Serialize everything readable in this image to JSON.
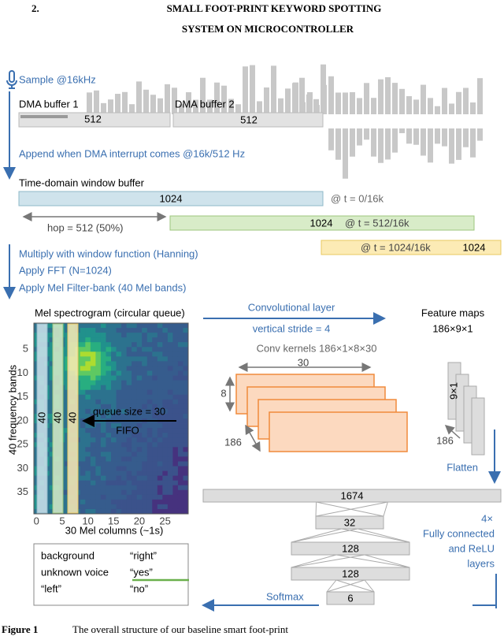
{
  "heading": {
    "number": "2.",
    "line1": "SMALL FOOT-PRINT KEYWORD SPOTTING",
    "line2": "SYSTEM ON MICROCONTROLLER"
  },
  "sampling": {
    "label": "Sample @16kHz",
    "dma1": {
      "label": "DMA buffer 1",
      "size": "512"
    },
    "dma2": {
      "label": "DMA buffer 2",
      "size": "512"
    },
    "append": "Append when DMA interrupt comes @16k/512 Hz"
  },
  "window": {
    "label": "Time-domain window buffer",
    "hop": "hop = 512 (50%)",
    "frames": [
      {
        "size": "1024",
        "time": "@ t = 0/16k"
      },
      {
        "size": "1024",
        "time": "@ t = 512/16k"
      },
      {
        "size": "1024",
        "time": "@ t = 1024/16k"
      }
    ]
  },
  "steps": [
    "Multiply with window function (Hanning)",
    "Apply FFT (N=1024)",
    "Apply Mel Filter-bank (40 Mel bands)"
  ],
  "spectrogram": {
    "title": "Mel spectrogram (circular queue)",
    "yticks": [
      "5",
      "10",
      "15",
      "20",
      "25",
      "30",
      "35"
    ],
    "xticks": [
      "0",
      "5",
      "10",
      "15",
      "20",
      "25"
    ],
    "ylabel": "40 frequency bands",
    "xlabel": "30 Mel columns (~1s)",
    "columns": [
      "40",
      "40",
      "40"
    ],
    "queue": "queue size = 30",
    "fifo": "FIFO"
  },
  "conv": {
    "layer": "Convolutional layer",
    "stride": "vertical stride = 4",
    "kernels": "Conv kernels 186×1×8×30",
    "width": "30",
    "height": "8",
    "depth": "186"
  },
  "features": {
    "title": "Feature maps",
    "shape": "186×9×1",
    "slab": "9×1",
    "depth": "186",
    "flatten": "Flatten"
  },
  "fc": {
    "sizes": [
      "1674",
      "32",
      "128",
      "128",
      "6"
    ],
    "repeat": "4×",
    "label": [
      "Fully connected",
      "and ReLU",
      "layers"
    ],
    "softmax": "Softmax"
  },
  "legend": [
    "background",
    "“right”",
    "unknown voice",
    "“yes”",
    "“left”",
    "“no”"
  ],
  "caption": {
    "label": "Figure 1",
    "text": "The overall structure of our baseline smart foot-print"
  }
}
